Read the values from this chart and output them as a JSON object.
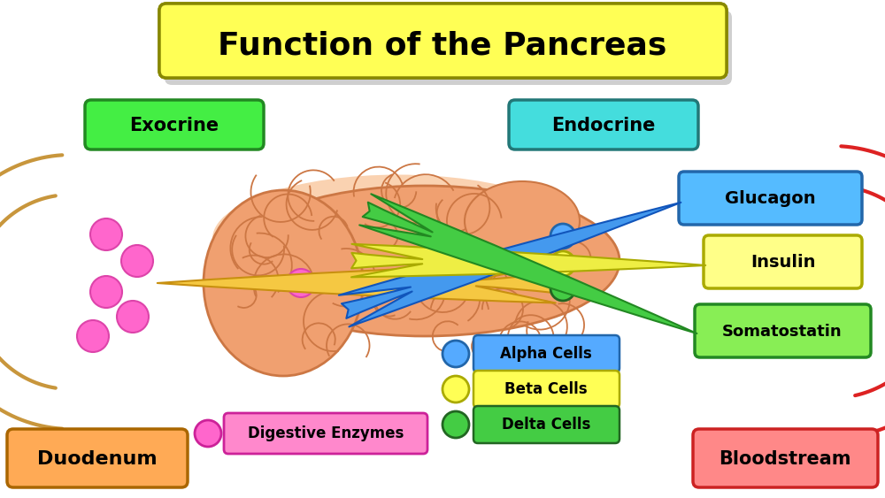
{
  "title": "Function of the Pancreas",
  "title_bg": "#FFFF55",
  "title_border": "#888800",
  "title_fontsize": 26,
  "background_color": "#FFFFFF",
  "exocrine_label": "Exocrine",
  "exocrine_bg": "#44EE44",
  "exocrine_border": "#228822",
  "endocrine_label": "Endocrine",
  "endocrine_bg": "#44DDDD",
  "endocrine_border": "#227777",
  "duodenum_label": "Duodenum",
  "duodenum_bg": "#FFAA55",
  "duodenum_border": "#AA6600",
  "bloodstream_label": "Bloodstream",
  "bloodstream_bg": "#FF8888",
  "bloodstream_border": "#CC2222",
  "glucagon_label": "Glucagon",
  "glucagon_bg": "#55BBFF",
  "glucagon_border": "#2266AA",
  "insulin_label": "Insulin",
  "insulin_bg": "#FFFF88",
  "insulin_border": "#AAAA00",
  "somatostatin_label": "Somatostatin",
  "somatostatin_bg": "#88EE55",
  "somatostatin_border": "#228822",
  "alpha_label": "Alpha Cells",
  "alpha_color": "#55AAFF",
  "alpha_border": "#2266AA",
  "beta_label": "Beta Cells",
  "beta_color": "#FFFF55",
  "beta_border": "#AAAA00",
  "delta_label": "Delta Cells",
  "delta_color": "#44CC44",
  "delta_border": "#226622",
  "digestive_label": "Digestive Enzymes",
  "digestive_color": "#FF66CC",
  "digestive_bg": "#FF66CC",
  "digestive_border": "#CC2299",
  "pancreas_fill": "#F0A070",
  "pancreas_edge": "#CC7744",
  "duodenum_arc_color": "#C8963C",
  "bloodstream_arc_color": "#DD2222"
}
